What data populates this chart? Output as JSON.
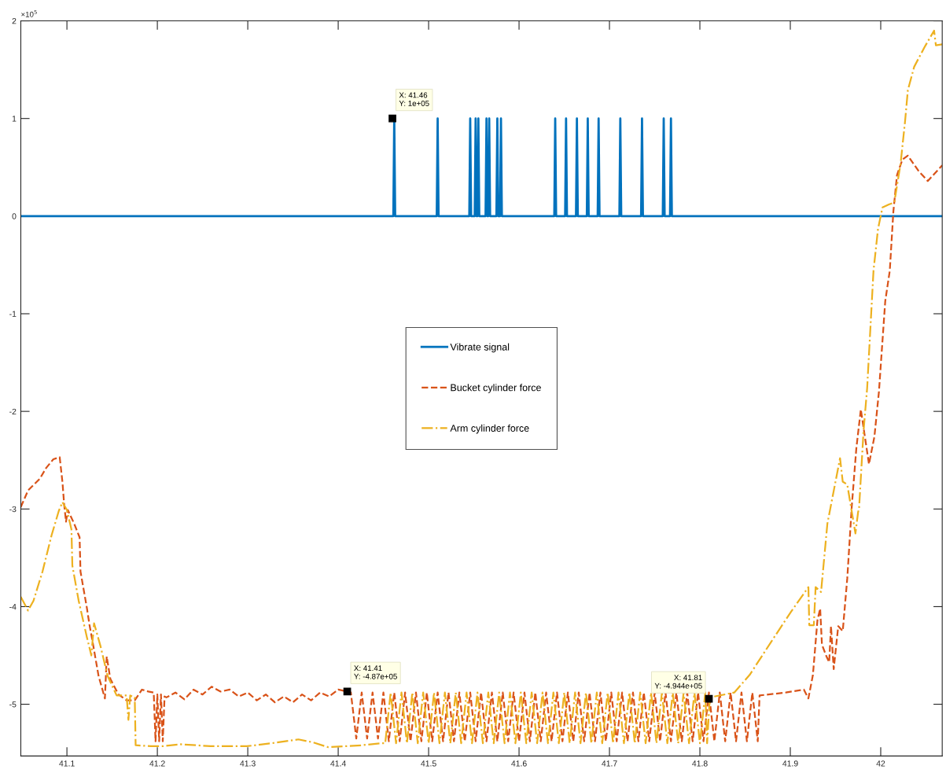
{
  "chart_data": {
    "type": "line",
    "xlim": [
      41.049,
      42.068
    ],
    "xticks": [
      41.1,
      41.2,
      41.3,
      41.4,
      41.5,
      41.6,
      41.7,
      41.8,
      41.9,
      42
    ],
    "ylim": [
      -5.53,
      2
    ],
    "yticks": [
      -5,
      -4,
      -3,
      -2,
      -1,
      0,
      1,
      2
    ],
    "grid": false,
    "legend": "center",
    "marker": "none",
    "series": [
      {
        "name": "Vibrate signal",
        "color": "#0072bd",
        "line_style": "solid",
        "x": [
          41.049,
          41.461,
          41.462,
          41.463,
          41.509,
          41.51,
          41.511,
          41.545,
          41.546,
          41.547,
          41.551,
          41.552,
          41.553,
          41.554,
          41.555,
          41.556,
          41.563,
          41.564,
          41.565,
          41.566,
          41.567,
          41.568,
          41.575,
          41.576,
          41.577,
          41.579,
          41.58,
          41.581,
          41.639,
          41.64,
          41.641,
          41.651,
          41.652,
          41.653,
          41.663,
          41.664,
          41.665,
          41.675,
          41.676,
          41.677,
          41.687,
          41.688,
          41.689,
          41.711,
          41.712,
          41.713,
          41.735,
          41.736,
          41.737,
          41.759,
          41.76,
          41.761,
          41.767,
          41.768,
          41.769,
          42.068
        ],
        "values": [
          0,
          0,
          1,
          0,
          0,
          1,
          0,
          0,
          1,
          0,
          0,
          1,
          0,
          0,
          1,
          0,
          0,
          1,
          0,
          0,
          1,
          0,
          0,
          1,
          0,
          0,
          1,
          0,
          0,
          1,
          0,
          0,
          1,
          0,
          0,
          1,
          0,
          0,
          1,
          0,
          0,
          1,
          0,
          0,
          1,
          0,
          0,
          1,
          0,
          0,
          1,
          0,
          0,
          1,
          0,
          0
        ]
      },
      {
        "name": "Bucket cylinder force",
        "color": "#d95319",
        "line_style": "dashed",
        "x": [
          41.049,
          41.057,
          41.07,
          41.077,
          41.085,
          41.092,
          41.095,
          41.097,
          41.099,
          41.101,
          41.108,
          41.114,
          41.115,
          41.122,
          41.125,
          41.128,
          41.135,
          41.142,
          41.144,
          41.148,
          41.157,
          41.166,
          41.175,
          41.183,
          41.19,
          41.196,
          41.198,
          41.2,
          41.202,
          41.204,
          41.206,
          41.208,
          41.21,
          41.22,
          41.23,
          41.24,
          41.25,
          41.26,
          41.27,
          41.28,
          41.29,
          41.3,
          41.31,
          41.32,
          41.33,
          41.34,
          41.35,
          41.36,
          41.37,
          41.38,
          41.39,
          41.4,
          41.41,
          41.414,
          41.42,
          41.426,
          41.432,
          41.438,
          41.444,
          41.45,
          41.456,
          41.462,
          41.468,
          41.474,
          41.48,
          41.486,
          41.492,
          41.498,
          41.504,
          41.51,
          41.516,
          41.522,
          41.528,
          41.534,
          41.54,
          41.546,
          41.552,
          41.558,
          41.564,
          41.57,
          41.576,
          41.582,
          41.588,
          41.594,
          41.6,
          41.606,
          41.612,
          41.618,
          41.624,
          41.63,
          41.636,
          41.642,
          41.648,
          41.654,
          41.66,
          41.666,
          41.672,
          41.678,
          41.684,
          41.69,
          41.696,
          41.702,
          41.708,
          41.714,
          41.72,
          41.726,
          41.732,
          41.738,
          41.744,
          41.75,
          41.756,
          41.762,
          41.768,
          41.774,
          41.78,
          41.786,
          41.792,
          41.798,
          41.804,
          41.81,
          41.816,
          41.822,
          41.828,
          41.834,
          41.84,
          41.846,
          41.852,
          41.858,
          41.864,
          41.866,
          41.895,
          41.915,
          41.92,
          41.925,
          41.93,
          41.933,
          41.935,
          41.94,
          41.943,
          41.945,
          41.948,
          41.953,
          41.958,
          41.963,
          41.968,
          41.973,
          41.978,
          41.982,
          41.987,
          41.993,
          41.998,
          42.005,
          42.01,
          42.014,
          42.018,
          42.024,
          42.03,
          42.042,
          42.052,
          42.062,
          42.068
        ],
        "values": [
          -2.98,
          -2.81,
          -2.69,
          -2.58,
          -2.49,
          -2.47,
          -2.72,
          -2.96,
          -3.13,
          -3.01,
          -3.15,
          -3.29,
          -3.64,
          -4.01,
          -4.19,
          -4.34,
          -4.71,
          -4.94,
          -4.51,
          -4.74,
          -4.9,
          -4.96,
          -4.96,
          -4.85,
          -4.87,
          -4.88,
          -5.38,
          -4.9,
          -5.38,
          -4.9,
          -5.38,
          -4.92,
          -4.93,
          -4.88,
          -4.95,
          -4.85,
          -4.9,
          -4.82,
          -4.87,
          -4.85,
          -4.92,
          -4.88,
          -4.96,
          -4.9,
          -4.98,
          -4.92,
          -4.98,
          -4.9,
          -4.96,
          -4.88,
          -4.92,
          -4.85,
          -4.87,
          -4.88,
          -5.35,
          -4.88,
          -5.35,
          -4.88,
          -5.35,
          -4.88,
          -5.38,
          -4.88,
          -5.38,
          -4.88,
          -5.38,
          -4.88,
          -5.38,
          -4.88,
          -5.38,
          -4.88,
          -5.38,
          -4.88,
          -5.38,
          -4.88,
          -5.38,
          -4.88,
          -5.38,
          -4.88,
          -5.38,
          -4.88,
          -5.38,
          -4.88,
          -5.38,
          -4.88,
          -5.38,
          -4.88,
          -5.38,
          -4.88,
          -5.38,
          -4.88,
          -5.38,
          -4.88,
          -5.38,
          -4.88,
          -5.38,
          -4.88,
          -5.38,
          -4.88,
          -5.38,
          -4.88,
          -5.38,
          -4.88,
          -5.38,
          -4.88,
          -5.38,
          -4.88,
          -5.38,
          -4.88,
          -5.38,
          -4.88,
          -5.38,
          -4.88,
          -5.38,
          -4.88,
          -5.38,
          -4.88,
          -5.38,
          -4.88,
          -5.38,
          -4.88,
          -5.38,
          -4.88,
          -5.38,
          -4.88,
          -5.38,
          -4.88,
          -5.38,
          -4.88,
          -5.38,
          -4.91,
          -4.88,
          -4.85,
          -4.94,
          -4.7,
          -4.14,
          -4.02,
          -4.39,
          -4.51,
          -4.57,
          -4.2,
          -4.64,
          -4.2,
          -4.25,
          -3.71,
          -2.97,
          -2.38,
          -1.98,
          -2.23,
          -2.54,
          -2.26,
          -1.8,
          -0.87,
          -0.56,
          0.05,
          0.42,
          0.58,
          0.62,
          0.46,
          0.36,
          0.46,
          0.52
        ]
      },
      {
        "name": "Arm cylinder force",
        "color": "#edb120",
        "line_style": "dashdot",
        "x": [
          41.049,
          41.057,
          41.063,
          41.073,
          41.083,
          41.091,
          41.095,
          41.1,
          41.105,
          41.106,
          41.113,
          41.122,
          41.127,
          41.13,
          41.137,
          41.145,
          41.155,
          41.166,
          41.168,
          41.17,
          41.175,
          41.176,
          41.193,
          41.206,
          41.226,
          41.259,
          41.299,
          41.326,
          41.356,
          41.372,
          41.389,
          41.426,
          41.446,
          41.452,
          41.458,
          41.464,
          41.47,
          41.476,
          41.482,
          41.488,
          41.494,
          41.5,
          41.506,
          41.512,
          41.518,
          41.524,
          41.53,
          41.536,
          41.542,
          41.548,
          41.554,
          41.56,
          41.566,
          41.572,
          41.578,
          41.584,
          41.59,
          41.596,
          41.602,
          41.608,
          41.614,
          41.62,
          41.626,
          41.632,
          41.638,
          41.644,
          41.65,
          41.656,
          41.662,
          41.668,
          41.674,
          41.68,
          41.686,
          41.692,
          41.698,
          41.704,
          41.71,
          41.716,
          41.722,
          41.728,
          41.734,
          41.74,
          41.746,
          41.752,
          41.758,
          41.764,
          41.77,
          41.776,
          41.782,
          41.788,
          41.794,
          41.8,
          41.806,
          41.808,
          41.811,
          41.838,
          41.855,
          41.881,
          41.901,
          41.92,
          41.921,
          41.926,
          41.928,
          41.934,
          41.941,
          41.955,
          41.958,
          41.963,
          41.972,
          41.975,
          41.976,
          41.981,
          41.985,
          41.992,
          41.997,
          42.002,
          42.009,
          42.015,
          42.022,
          42.027,
          42.03,
          42.037,
          42.049,
          42.059,
          42.061,
          42.068
        ],
        "values": [
          -3.9,
          -4.04,
          -3.94,
          -3.64,
          -3.27,
          -3.02,
          -2.93,
          -3.01,
          -3.21,
          -3.58,
          -3.94,
          -4.31,
          -4.5,
          -4.17,
          -4.4,
          -4.71,
          -4.91,
          -4.91,
          -5.16,
          -4.91,
          -4.93,
          -5.42,
          -5.43,
          -5.43,
          -5.41,
          -5.43,
          -5.43,
          -5.4,
          -5.36,
          -5.39,
          -5.44,
          -5.42,
          -5.4,
          -5.4,
          -4.88,
          -5.4,
          -4.88,
          -5.4,
          -4.88,
          -5.4,
          -4.88,
          -5.4,
          -4.88,
          -5.4,
          -4.88,
          -5.4,
          -4.88,
          -5.4,
          -4.88,
          -5.4,
          -4.88,
          -5.4,
          -4.88,
          -5.4,
          -4.88,
          -5.4,
          -4.88,
          -5.4,
          -4.88,
          -5.4,
          -4.88,
          -5.4,
          -4.88,
          -5.4,
          -4.88,
          -5.4,
          -4.88,
          -5.4,
          -4.88,
          -5.4,
          -4.88,
          -5.4,
          -4.88,
          -5.4,
          -4.88,
          -5.4,
          -4.88,
          -5.4,
          -4.88,
          -5.4,
          -4.88,
          -5.4,
          -4.88,
          -5.4,
          -4.88,
          -5.4,
          -4.88,
          -5.4,
          -4.88,
          -5.4,
          -4.88,
          -5.4,
          -4.88,
          -5.4,
          -4.93,
          -4.88,
          -4.7,
          -4.33,
          -4.05,
          -3.8,
          -4.19,
          -4.19,
          -3.8,
          -3.85,
          -3.15,
          -2.48,
          -2.72,
          -2.75,
          -3.25,
          -3.03,
          -3,
          -2.2,
          -1.76,
          -0.56,
          -0.13,
          0.09,
          0.12,
          0.14,
          0.54,
          0.98,
          1.29,
          1.53,
          1.74,
          1.9,
          1.75,
          1.76
        ]
      }
    ],
    "annotations": [
      {
        "text": "X: 41.46\nY: 1e+05",
        "x": 41.46,
        "y": 1
      },
      {
        "text": "X: 41.41\nY: -4.87e+05",
        "x": 41.41,
        "y": -4.87
      },
      {
        "text": "X: 41.81\nY: -4.944e+05",
        "x": 41.81,
        "y": -4.944
      },
      "×10$^{5}$"
    ]
  }
}
